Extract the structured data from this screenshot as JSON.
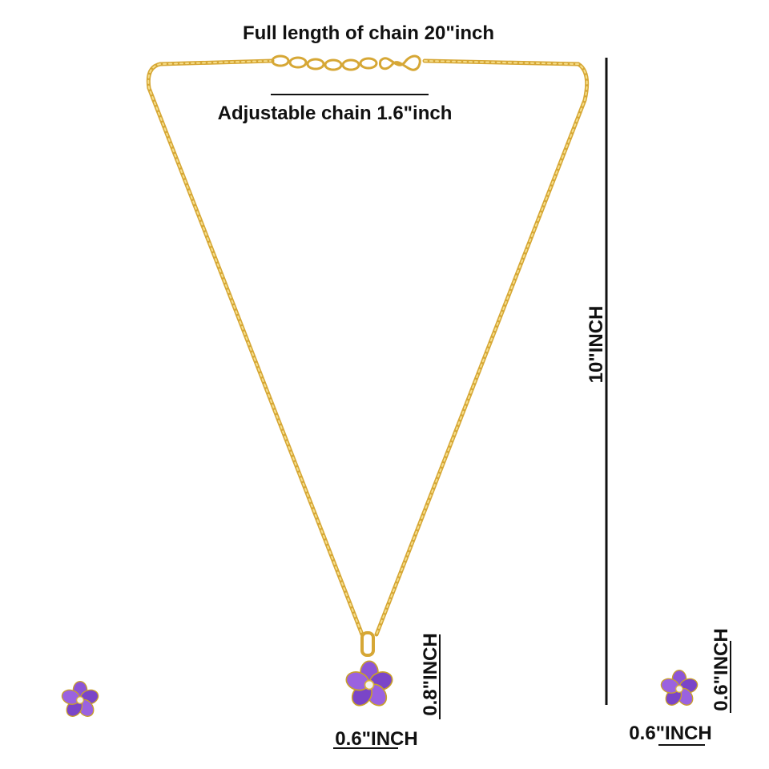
{
  "title": "Full length of chain 20\"inch",
  "adjustable_label": "Adjustable chain 1.6\"inch",
  "necklace_length_label": "10\"INCH",
  "pendant_height_label": "0.8\"INCH",
  "pendant_width_label": "0.6\"INCH",
  "earring_height_label": "0.6\"INCH",
  "earring_width_label": "0.6\"INCH"
}
